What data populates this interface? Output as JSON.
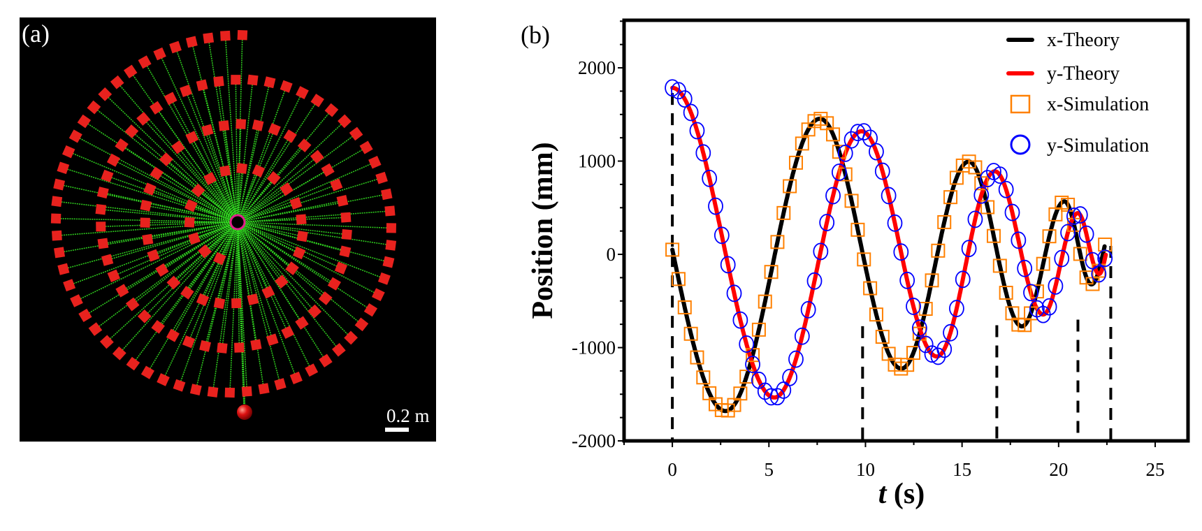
{
  "panel_a": {
    "label": "(a)",
    "scale_bar_label": "0.2 m",
    "colors": {
      "background": "#000000",
      "mass": "#e8221e",
      "tether": "#33dd22",
      "hub_ring": "#e0208a",
      "ball": "#dd1111"
    }
  },
  "chart_data": {
    "type": "line",
    "panel_label": "(b)",
    "title": "",
    "xlabel_var": "t",
    "xlabel_unit": "(s)",
    "ylabel": "Position (mm)",
    "xlim": [
      -2.5,
      26.7
    ],
    "ylim": [
      -2000,
      2510
    ],
    "xticks": [
      0,
      5,
      10,
      15,
      20,
      25
    ],
    "yticks": [
      -2000,
      -1000,
      0,
      1000,
      2000
    ],
    "x_minor_step": 2.5,
    "y_minor_step": 250,
    "grid": false,
    "series": [
      {
        "name": "x-Theory",
        "type": "line",
        "color": "#000000",
        "points": [
          [
            0,
            50,
            false
          ],
          [
            2.75,
            -1680,
            true
          ],
          [
            7.64,
            1454,
            true
          ],
          [
            11.86,
            -1225,
            true
          ],
          [
            15.35,
            995,
            true
          ],
          [
            18.1,
            -772,
            true
          ],
          [
            20.3,
            568,
            true
          ],
          [
            21.7,
            -322,
            true
          ],
          [
            22.4,
            105,
            false
          ]
        ]
      },
      {
        "name": "y-Theory",
        "type": "line",
        "color": "#ff0000",
        "points": [
          [
            0,
            1785,
            true
          ],
          [
            5.28,
            -1535,
            true
          ],
          [
            9.8,
            1320,
            true
          ],
          [
            13.7,
            -1095,
            true
          ],
          [
            16.7,
            890,
            true
          ],
          [
            19.2,
            -645,
            true
          ],
          [
            21.0,
            442,
            true
          ],
          [
            22.1,
            -210,
            true
          ],
          [
            22.45,
            5,
            false
          ]
        ]
      },
      {
        "name": "x-Simulation",
        "type": "scatter",
        "marker": "square",
        "color": "#ff8000",
        "follows": "x-Theory",
        "t_start": 0,
        "t_step": 0.32,
        "t_end": 22.4
      },
      {
        "name": "y-Simulation",
        "type": "scatter",
        "marker": "circle",
        "color": "#0000ff",
        "follows": "y-Theory",
        "t_start": 0,
        "t_step": 0.32,
        "t_end": 22.4
      }
    ],
    "dashed_lines": [
      {
        "t": 0,
        "from": 1730,
        "to": -2000
      },
      {
        "t": 9.85,
        "from": -770,
        "to": -2000
      },
      {
        "t": 16.8,
        "from": -760,
        "to": -2000
      },
      {
        "t": 21.0,
        "from": -700,
        "to": -2000
      },
      {
        "t": 22.7,
        "from": 90,
        "to": -2000
      }
    ],
    "legend": {
      "placement": "top-right",
      "entries": [
        {
          "label": "x-Theory",
          "symbol": "line",
          "color": "#000000"
        },
        {
          "label": "y-Theory",
          "symbol": "line",
          "color": "#ff0000"
        },
        {
          "label": "x-Simulation",
          "symbol": "square",
          "color": "#ff8000"
        },
        {
          "label": "y-Simulation",
          "symbol": "circle",
          "color": "#0000ff"
        }
      ]
    }
  }
}
